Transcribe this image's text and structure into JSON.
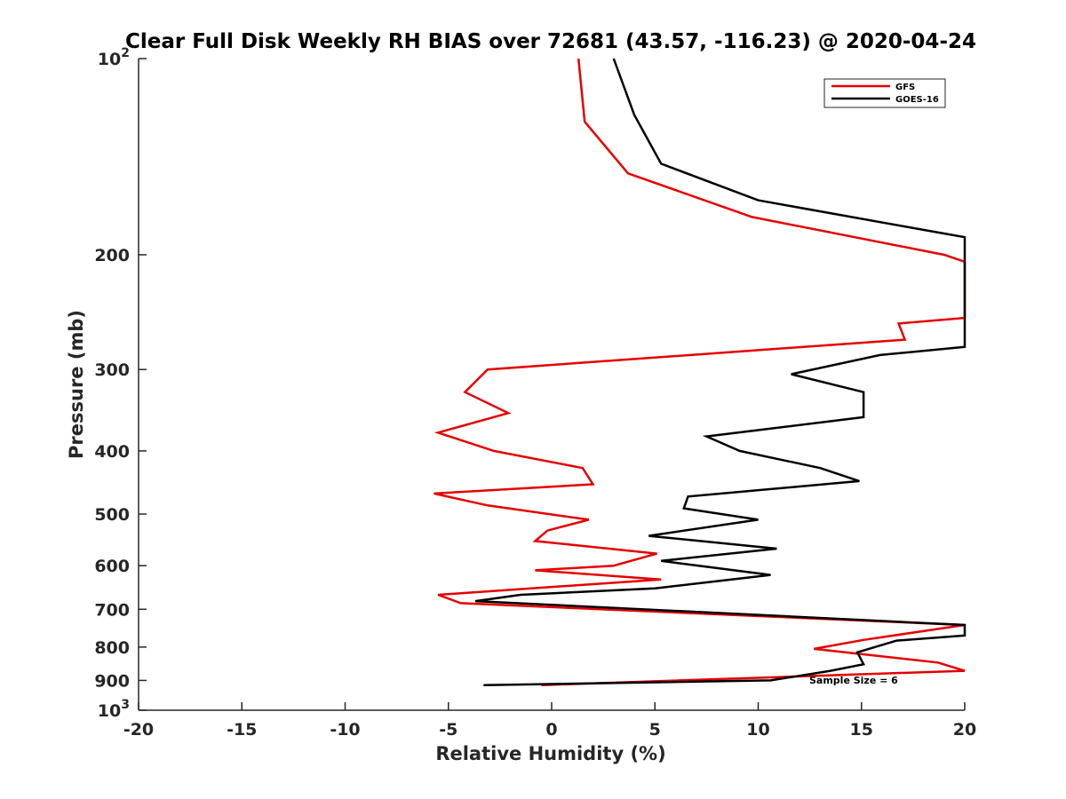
{
  "chart_data": {
    "type": "line",
    "title": "Clear Full Disk Weekly RH BIAS over 72681 (43.57, -116.23) @ 2020-04-24",
    "xlabel": "Relative Humidity (%)",
    "ylabel": "Pressure (mb)",
    "xlim": [
      -20,
      20
    ],
    "ylim": [
      100,
      1000
    ],
    "y_scale": "log",
    "y_reversed": true,
    "grid": false,
    "legend_position": "top-right",
    "x_ticks": [
      "-20",
      "-15",
      "-10",
      "-5",
      "0",
      "5",
      "10",
      "15",
      "20"
    ],
    "y_ticks": [
      {
        "value": 100,
        "base": "10",
        "exp": "2"
      },
      {
        "value": 200,
        "label": "200"
      },
      {
        "value": 300,
        "label": "300"
      },
      {
        "value": 400,
        "label": "400"
      },
      {
        "value": 500,
        "label": "500"
      },
      {
        "value": 600,
        "label": "600"
      },
      {
        "value": 700,
        "label": "700"
      },
      {
        "value": 800,
        "label": "800"
      },
      {
        "value": 900,
        "label": "900"
      },
      {
        "value": 1000,
        "base": "10",
        "exp": "3"
      }
    ],
    "series": [
      {
        "name": "GFS",
        "color": "#e50000",
        "points": [
          [
            1.3,
            100
          ],
          [
            1.6,
            125
          ],
          [
            3.7,
            150
          ],
          [
            9.7,
            175
          ],
          [
            19.0,
            200
          ],
          [
            20.0,
            205
          ],
          [
            20.0,
            250
          ],
          [
            16.8,
            255
          ],
          [
            17.1,
            270
          ],
          [
            -3.1,
            300
          ],
          [
            -4.2,
            325
          ],
          [
            -2.1,
            350
          ],
          [
            -5.5,
            375
          ],
          [
            -2.8,
            400
          ],
          [
            1.5,
            425
          ],
          [
            2.0,
            450
          ],
          [
            -5.7,
            465
          ],
          [
            -3.1,
            485
          ],
          [
            1.8,
            510
          ],
          [
            -0.2,
            530
          ],
          [
            -0.8,
            550
          ],
          [
            5.1,
            575
          ],
          [
            3.0,
            600
          ],
          [
            -0.8,
            610
          ],
          [
            5.3,
            630
          ],
          [
            -5.5,
            665
          ],
          [
            -4.4,
            685
          ],
          [
            20.0,
            740
          ],
          [
            15.1,
            780
          ],
          [
            12.7,
            805
          ],
          [
            18.7,
            845
          ],
          [
            20.0,
            870
          ],
          [
            -0.5,
            915
          ]
        ]
      },
      {
        "name": "GOES-16",
        "color": "#000000",
        "points": [
          [
            3.0,
            100
          ],
          [
            4.0,
            122
          ],
          [
            5.3,
            145
          ],
          [
            10.0,
            165
          ],
          [
            20.0,
            188
          ],
          [
            20.0,
            277
          ],
          [
            15.9,
            285
          ],
          [
            11.6,
            305
          ],
          [
            15.1,
            325
          ],
          [
            15.1,
            355
          ],
          [
            7.5,
            380
          ],
          [
            9.1,
            400
          ],
          [
            13.0,
            425
          ],
          [
            14.9,
            445
          ],
          [
            6.6,
            470
          ],
          [
            6.4,
            490
          ],
          [
            10.0,
            510
          ],
          [
            4.7,
            540
          ],
          [
            10.9,
            565
          ],
          [
            5.3,
            590
          ],
          [
            10.6,
            620
          ],
          [
            5.0,
            650
          ],
          [
            -1.5,
            665
          ],
          [
            -3.7,
            680
          ],
          [
            20.0,
            740
          ],
          [
            20.0,
            768
          ],
          [
            16.7,
            782
          ],
          [
            14.8,
            815
          ],
          [
            15.1,
            850
          ],
          [
            13.5,
            870
          ],
          [
            10.6,
            900
          ],
          [
            -3.3,
            915
          ]
        ]
      }
    ],
    "annotation": "Sample Size = 6"
  }
}
